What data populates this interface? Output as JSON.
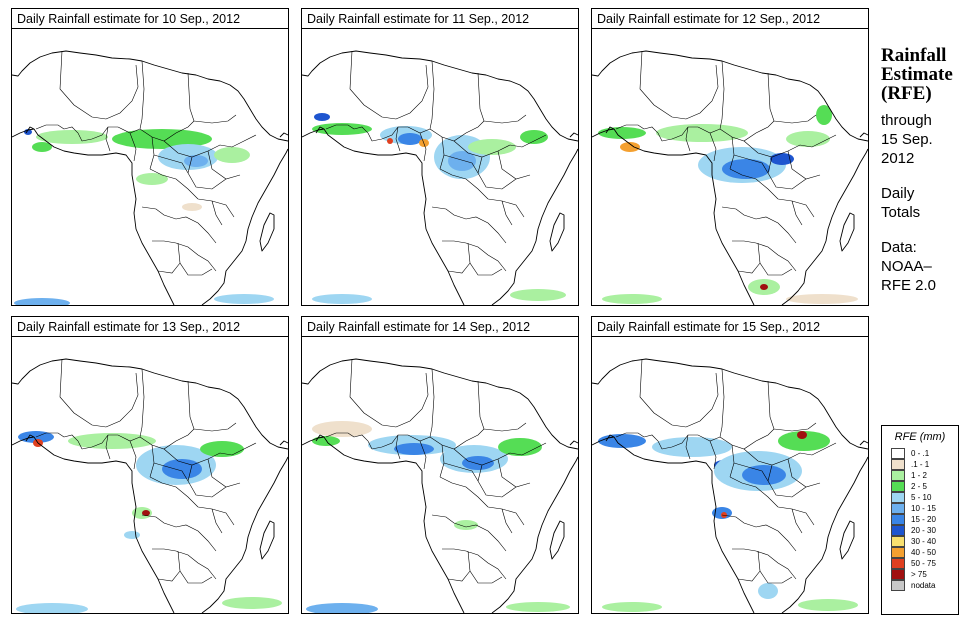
{
  "panels": [
    {
      "title": "Daily Rainfall estimate for  10 Sep., 2012"
    },
    {
      "title": "Daily Rainfall estimate for  11 Sep., 2012"
    },
    {
      "title": "Daily Rainfall estimate for  12 Sep., 2012"
    },
    {
      "title": "Daily Rainfall estimate for  13 Sep., 2012"
    },
    {
      "title": "Daily Rainfall estimate for  14 Sep., 2012"
    },
    {
      "title": "Daily Rainfall estimate for  15 Sep., 2012"
    }
  ],
  "sidebar": {
    "heading_line1": "Rainfall",
    "heading_line2": "Estimate",
    "heading_line3": "(RFE)",
    "through_label": "through",
    "through_date_line1": "15 Sep.",
    "through_date_line2": "2012",
    "totals_line1": "Daily",
    "totals_line2": "Totals",
    "data_label": "Data:",
    "source_line1": "NOAA–",
    "source_line2": "RFE 2.0"
  },
  "legend": {
    "title": "RFE (mm)",
    "items": [
      {
        "label": "0 - .1",
        "color": "#ffffff"
      },
      {
        "label": ".1 - 1",
        "color": "#efe0cc"
      },
      {
        "label": "1 - 2",
        "color": "#aaf0a0"
      },
      {
        "label": "2 - 5",
        "color": "#55dd55"
      },
      {
        "label": "5 - 10",
        "color": "#9ed6f2"
      },
      {
        "label": "10 - 15",
        "color": "#6db0ee"
      },
      {
        "label": "15 - 20",
        "color": "#3a85e6"
      },
      {
        "label": "20 - 30",
        "color": "#1e55cf"
      },
      {
        "label": "30 - 40",
        "color": "#f8e070"
      },
      {
        "label": "40 - 50",
        "color": "#f4a030"
      },
      {
        "label": "50 - 75",
        "color": "#e04020"
      },
      {
        "label": "> 75",
        "color": "#a01010"
      },
      {
        "label": "nodata",
        "color": "#c8c8c8"
      }
    ]
  }
}
